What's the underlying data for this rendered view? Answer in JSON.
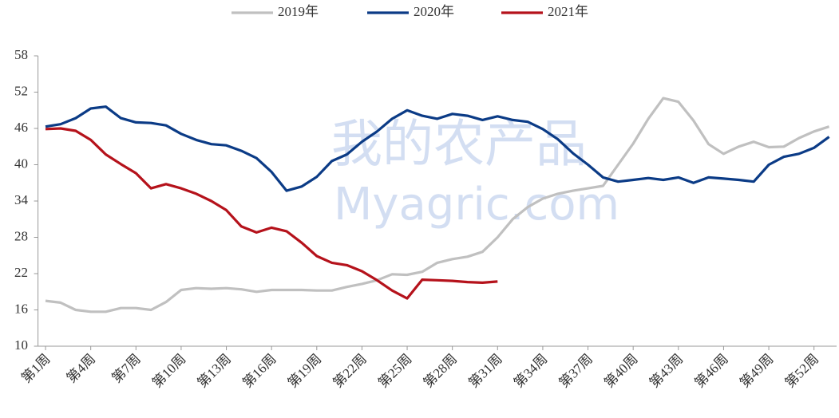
{
  "chart_data": {
    "type": "line",
    "watermark": [
      "我的农产品",
      "Myagric.com"
    ],
    "categories": [
      "第1周",
      null,
      null,
      "第4周",
      null,
      null,
      "第7周",
      null,
      null,
      "第10周",
      null,
      null,
      "第13周",
      null,
      null,
      "第16周",
      null,
      null,
      "第19周",
      null,
      null,
      "第22周",
      null,
      null,
      "第25周",
      null,
      null,
      "第28周",
      null,
      null,
      "第31周",
      null,
      null,
      "第34周",
      null,
      null,
      "第37周",
      null,
      null,
      "第40周",
      null,
      null,
      "第43周",
      null,
      null,
      "第46周",
      null,
      null,
      "第49周",
      null,
      null,
      "第52周",
      null
    ],
    "series": [
      {
        "name": "2019年",
        "color": "#c0c0c0",
        "values": [
          17.5,
          17.2,
          16.0,
          15.7,
          15.7,
          16.3,
          16.3,
          16.0,
          17.3,
          19.3,
          19.6,
          19.5,
          19.6,
          19.4,
          19.0,
          19.3,
          19.3,
          19.3,
          19.2,
          19.2,
          19.8,
          20.3,
          20.9,
          21.9,
          21.8,
          22.3,
          23.8,
          24.4,
          24.8,
          25.6,
          28.0,
          31.0,
          33.0,
          34.4,
          35.2,
          35.7,
          36.1,
          36.5,
          40.0,
          43.5,
          47.6,
          51.0,
          50.4,
          47.3,
          43.4,
          41.8,
          43.0,
          43.8,
          42.9,
          43.0,
          44.4,
          45.5,
          46.3
        ]
      },
      {
        "name": "2020年",
        "color": "#0b3b86",
        "values": [
          46.3,
          46.7,
          47.7,
          49.3,
          49.6,
          47.7,
          47.0,
          46.9,
          46.5,
          45.1,
          44.1,
          43.4,
          43.2,
          42.3,
          41.1,
          38.8,
          35.7,
          36.4,
          38.0,
          40.6,
          41.7,
          43.8,
          45.5,
          47.6,
          49.0,
          48.1,
          47.6,
          48.4,
          48.1,
          47.4,
          48.0,
          47.4,
          47.1,
          45.9,
          44.2,
          41.9,
          40.0,
          37.9,
          37.2,
          37.5,
          37.8,
          37.5,
          37.9,
          37.0,
          37.9,
          37.7,
          37.5,
          37.2,
          40.0,
          41.3,
          41.8,
          42.8,
          44.6
        ]
      },
      {
        "name": "2021年",
        "color": "#b5121b",
        "values": [
          45.9,
          46.0,
          45.6,
          44.1,
          41.7,
          40.1,
          38.6,
          36.1,
          36.8,
          36.1,
          35.2,
          34.0,
          32.5,
          29.8,
          28.8,
          29.6,
          29.0,
          27.1,
          24.9,
          23.8,
          23.4,
          22.4,
          20.9,
          19.2,
          17.9,
          21.0,
          20.9,
          20.8,
          20.6,
          20.5,
          20.7,
          null,
          null,
          null,
          null,
          null,
          null,
          null,
          null,
          null,
          null,
          null,
          null,
          null,
          null,
          null,
          null,
          null,
          null,
          null,
          null,
          null,
          null
        ]
      }
    ],
    "ylim": [
      10,
      58
    ],
    "yticks": [
      10,
      16,
      22,
      28,
      34,
      40,
      46,
      52,
      58
    ],
    "legend": "top"
  }
}
